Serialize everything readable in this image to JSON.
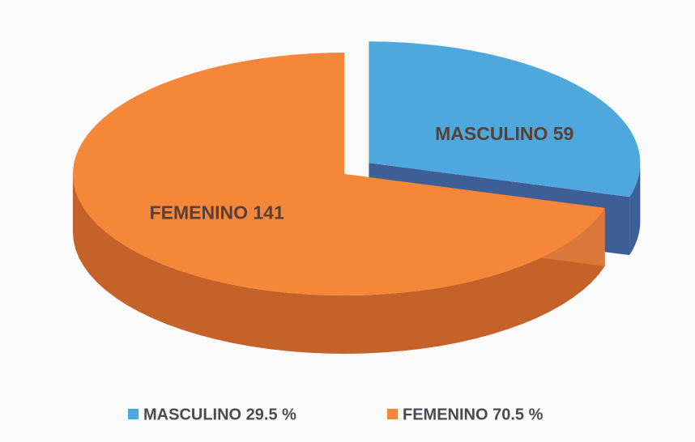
{
  "chart_data": {
    "type": "pie3d",
    "values": [
      59,
      141
    ],
    "value_labels": [
      "MASCULINO 59",
      "FEMENINO 141"
    ],
    "legend": [
      "MASCULINO 29.5 %",
      "FEMENINO 70.5 %"
    ],
    "colors": [
      "#4fa8dd",
      "#f5873a"
    ],
    "side_colors": [
      "#3d5f96",
      "#c5622a"
    ]
  }
}
